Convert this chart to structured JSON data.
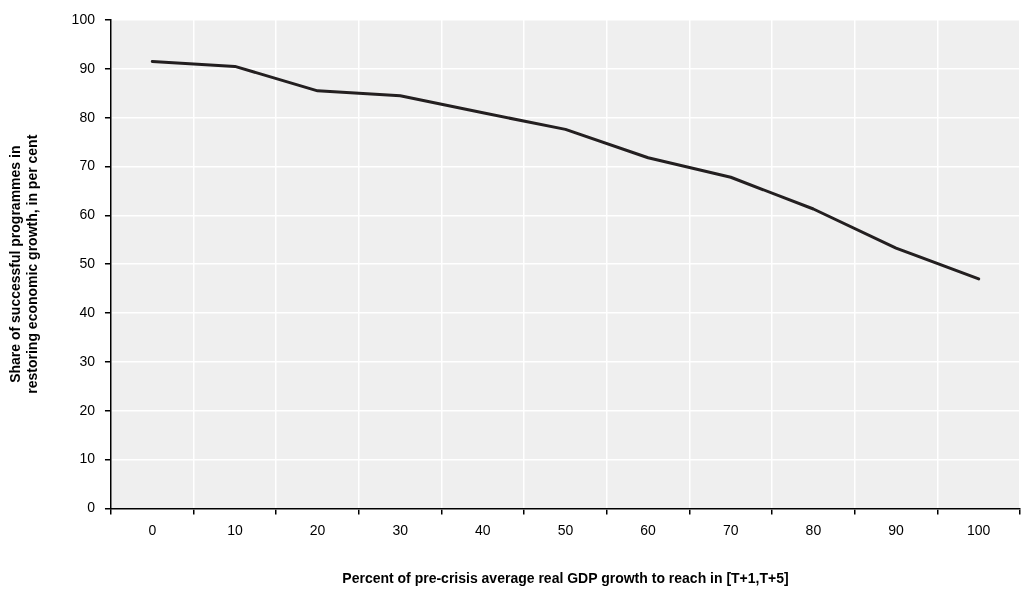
{
  "chart_data": {
    "type": "line",
    "xlabel": "Percent of pre-crisis average real GDP growth to reach in [T+1,T+5]",
    "ylabel": "Share of successful programmes in\nrestoring economic growth, in per cent",
    "categories": [
      "0",
      "10",
      "20",
      "30",
      "40",
      "50",
      "60",
      "70",
      "80",
      "90",
      "100"
    ],
    "series": [
      {
        "color": "#231f20",
        "values": [
          91.5,
          90.5,
          85.5,
          84.5,
          81,
          77.6,
          71.8,
          67.8,
          61.3,
          53.3,
          47
        ]
      }
    ],
    "ylim": [
      0,
      100
    ],
    "yticks": [
      0,
      10,
      20,
      30,
      40,
      50,
      60,
      70,
      80,
      90,
      100
    ],
    "grid": true,
    "legend": false,
    "marker": "none",
    "line_style": "solid"
  }
}
